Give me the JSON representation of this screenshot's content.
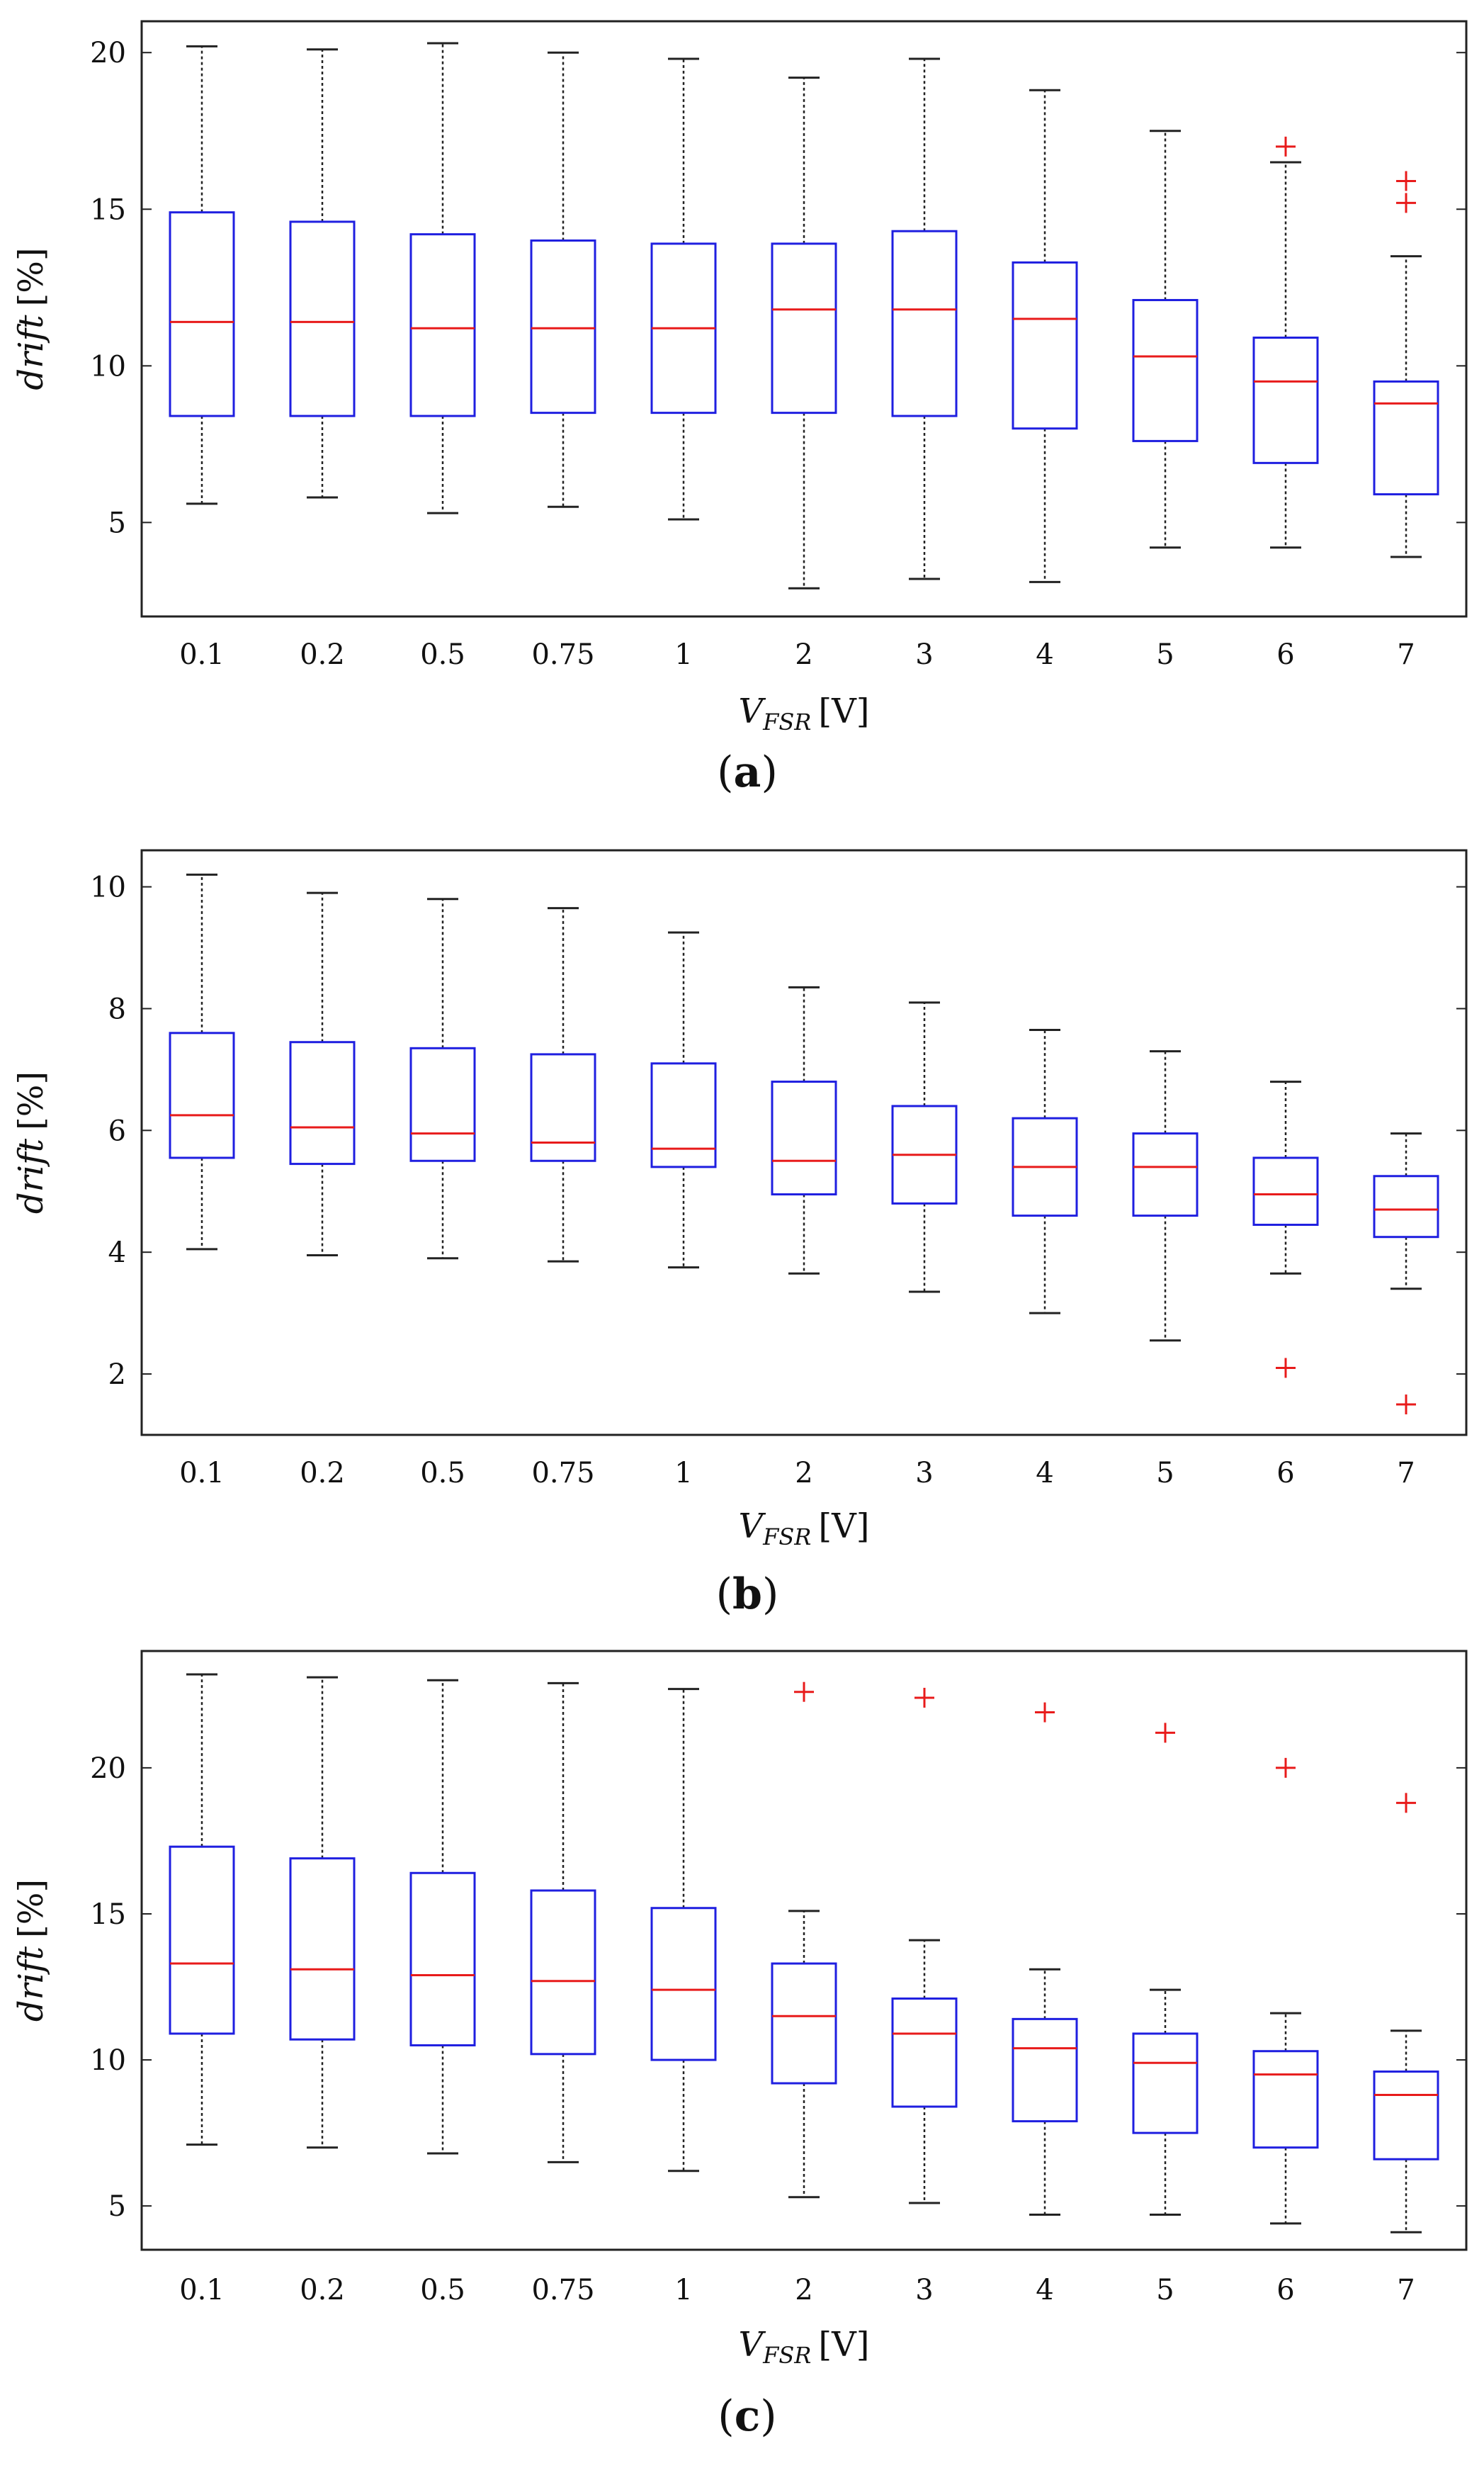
{
  "figure": {
    "panels": [
      {
        "caption_open": "(",
        "caption_letter": "a",
        "caption_close": ")"
      },
      {
        "caption_open": "(",
        "caption_letter": "b",
        "caption_close": ")"
      },
      {
        "caption_open": "(",
        "caption_letter": "c",
        "caption_close": ")"
      }
    ]
  },
  "colors": {
    "box": "#1f1fe0",
    "median": "#e81b1b",
    "whisker": "#222222",
    "outlier": "#e81b1b",
    "frame": "#222222"
  },
  "chart_data": [
    {
      "type": "box",
      "panel": "a",
      "categories": [
        "0.1",
        "0.2",
        "0.5",
        "0.75",
        "1",
        "2",
        "3",
        "4",
        "5",
        "6",
        "7"
      ],
      "xlabel_symbol": "V",
      "xlabel_subscript": "FSR",
      "xlabel_unit": "[V]",
      "ylabel_italic": "drift",
      "ylabel_unit": "[%]",
      "ylim": [
        2,
        21
      ],
      "yticks": [
        5,
        10,
        15,
        20
      ],
      "boxes": [
        {
          "min": 5.6,
          "q1": 8.4,
          "median": 11.4,
          "q3": 14.9,
          "max": 20.2,
          "outliers": []
        },
        {
          "min": 5.8,
          "q1": 8.4,
          "median": 11.4,
          "q3": 14.6,
          "max": 20.1,
          "outliers": []
        },
        {
          "min": 5.3,
          "q1": 8.4,
          "median": 11.2,
          "q3": 14.2,
          "max": 20.3,
          "outliers": []
        },
        {
          "min": 5.5,
          "q1": 8.5,
          "median": 11.2,
          "q3": 14.0,
          "max": 20.0,
          "outliers": []
        },
        {
          "min": 5.1,
          "q1": 8.5,
          "median": 11.2,
          "q3": 13.9,
          "max": 19.8,
          "outliers": []
        },
        {
          "min": 2.9,
          "q1": 8.5,
          "median": 11.8,
          "q3": 13.9,
          "max": 19.2,
          "outliers": []
        },
        {
          "min": 3.2,
          "q1": 8.4,
          "median": 11.8,
          "q3": 14.3,
          "max": 19.8,
          "outliers": []
        },
        {
          "min": 3.1,
          "q1": 8.0,
          "median": 11.5,
          "q3": 13.3,
          "max": 18.8,
          "outliers": []
        },
        {
          "min": 4.2,
          "q1": 7.6,
          "median": 10.3,
          "q3": 12.1,
          "max": 17.5,
          "outliers": []
        },
        {
          "min": 4.2,
          "q1": 6.9,
          "median": 9.5,
          "q3": 10.9,
          "max": 16.5,
          "outliers": [
            17.0
          ]
        },
        {
          "min": 3.9,
          "q1": 5.9,
          "median": 8.8,
          "q3": 9.5,
          "max": 13.5,
          "outliers": [
            15.2,
            15.9
          ]
        }
      ]
    },
    {
      "type": "box",
      "panel": "b",
      "categories": [
        "0.1",
        "0.2",
        "0.5",
        "0.75",
        "1",
        "2",
        "3",
        "4",
        "5",
        "6",
        "7"
      ],
      "xlabel_symbol": "V",
      "xlabel_subscript": "FSR",
      "xlabel_unit": "[V]",
      "ylabel_italic": "drift",
      "ylabel_unit": "[%]",
      "ylim": [
        1,
        10.6
      ],
      "yticks": [
        2,
        4,
        6,
        8,
        10
      ],
      "boxes": [
        {
          "min": 4.05,
          "q1": 5.55,
          "median": 6.25,
          "q3": 7.6,
          "max": 10.2,
          "outliers": []
        },
        {
          "min": 3.95,
          "q1": 5.45,
          "median": 6.05,
          "q3": 7.45,
          "max": 9.9,
          "outliers": []
        },
        {
          "min": 3.9,
          "q1": 5.5,
          "median": 5.95,
          "q3": 7.35,
          "max": 9.8,
          "outliers": []
        },
        {
          "min": 3.85,
          "q1": 5.5,
          "median": 5.8,
          "q3": 7.25,
          "max": 9.65,
          "outliers": []
        },
        {
          "min": 3.75,
          "q1": 5.4,
          "median": 5.7,
          "q3": 7.1,
          "max": 9.25,
          "outliers": []
        },
        {
          "min": 3.65,
          "q1": 4.95,
          "median": 5.5,
          "q3": 6.8,
          "max": 8.35,
          "outliers": []
        },
        {
          "min": 3.35,
          "q1": 4.8,
          "median": 5.6,
          "q3": 6.4,
          "max": 8.1,
          "outliers": []
        },
        {
          "min": 3.0,
          "q1": 4.6,
          "median": 5.4,
          "q3": 6.2,
          "max": 7.65,
          "outliers": []
        },
        {
          "min": 2.55,
          "q1": 4.6,
          "median": 5.4,
          "q3": 5.95,
          "max": 7.3,
          "outliers": []
        },
        {
          "min": 3.65,
          "q1": 4.45,
          "median": 4.95,
          "q3": 5.55,
          "max": 6.8,
          "outliers": [
            2.1
          ]
        },
        {
          "min": 3.4,
          "q1": 4.25,
          "median": 4.7,
          "q3": 5.25,
          "max": 5.95,
          "outliers": [
            1.5
          ]
        }
      ]
    },
    {
      "type": "box",
      "panel": "c",
      "categories": [
        "0.1",
        "0.2",
        "0.5",
        "0.75",
        "1",
        "2",
        "3",
        "4",
        "5",
        "6",
        "7"
      ],
      "xlabel_symbol": "V",
      "xlabel_subscript": "FSR",
      "xlabel_unit": "[V]",
      "ylabel_italic": "drift",
      "ylabel_unit": "[%]",
      "ylim": [
        3.5,
        24
      ],
      "yticks": [
        5,
        10,
        15,
        20
      ],
      "boxes": [
        {
          "min": 7.1,
          "q1": 10.9,
          "median": 13.3,
          "q3": 17.3,
          "max": 23.2,
          "outliers": []
        },
        {
          "min": 7.0,
          "q1": 10.7,
          "median": 13.1,
          "q3": 16.9,
          "max": 23.1,
          "outliers": []
        },
        {
          "min": 6.8,
          "q1": 10.5,
          "median": 12.9,
          "q3": 16.4,
          "max": 23.0,
          "outliers": []
        },
        {
          "min": 6.5,
          "q1": 10.2,
          "median": 12.7,
          "q3": 15.8,
          "max": 22.9,
          "outliers": []
        },
        {
          "min": 6.2,
          "q1": 10.0,
          "median": 12.4,
          "q3": 15.2,
          "max": 22.7,
          "outliers": []
        },
        {
          "min": 5.3,
          "q1": 9.2,
          "median": 11.5,
          "q3": 13.3,
          "max": 15.1,
          "outliers": [
            22.6
          ]
        },
        {
          "min": 5.1,
          "q1": 8.4,
          "median": 10.9,
          "q3": 12.1,
          "max": 14.1,
          "outliers": [
            22.4
          ]
        },
        {
          "min": 4.7,
          "q1": 7.9,
          "median": 10.4,
          "q3": 11.4,
          "max": 13.1,
          "outliers": [
            21.9
          ]
        },
        {
          "min": 4.7,
          "q1": 7.5,
          "median": 9.9,
          "q3": 10.9,
          "max": 12.4,
          "outliers": [
            21.2
          ]
        },
        {
          "min": 4.4,
          "q1": 7.0,
          "median": 9.5,
          "q3": 10.3,
          "max": 11.6,
          "outliers": [
            20.0
          ]
        },
        {
          "min": 4.1,
          "q1": 6.6,
          "median": 8.8,
          "q3": 9.6,
          "max": 11.0,
          "outliers": [
            18.8
          ]
        }
      ]
    }
  ]
}
